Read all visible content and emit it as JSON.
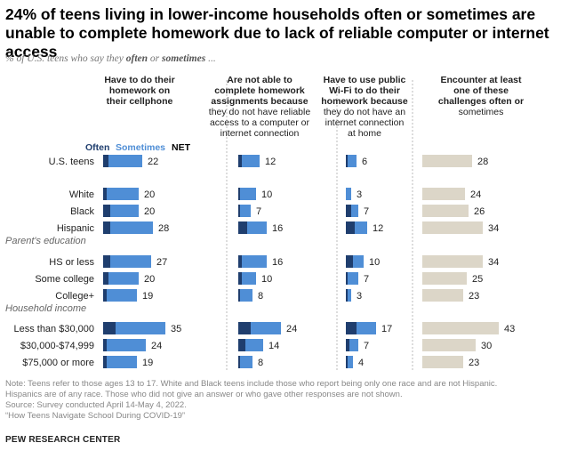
{
  "title": "24% of teens living in lower-income households often or sometimes are unable to complete homework due to lack of reliable computer or internet access",
  "subtitle": {
    "prefix": "% of U.S. teens who say they ",
    "often": "often",
    "or": " or ",
    "sometimes": "sometimes",
    "suffix": " ..."
  },
  "colors": {
    "often": "#1f3e6e",
    "sometimes": "#4f8ed6",
    "encounter": "#dcd6c8",
    "divider": "#bbbbbb",
    "text": "#222222"
  },
  "chart_data": {
    "type": "bar",
    "legend": {
      "often": "Often",
      "sometimes": "Sometimes",
      "net": "NET"
    },
    "panels": [
      {
        "header": [
          "Have to do their",
          "homework on",
          "their cellphone"
        ],
        "bold_lines": 3
      },
      {
        "header": [
          "Are not able to",
          "complete homework",
          "assignments because",
          "they do not have reliable",
          "access to a computer or",
          "internet connection"
        ],
        "bold_lines": 3
      },
      {
        "header": [
          "Have to use public",
          "Wi-Fi to do their",
          "homework because",
          "they do not have an",
          "internet connection",
          "at home"
        ],
        "bold_lines": 3
      },
      {
        "header": [
          "Encounter at least",
          "one of these",
          "challenges often or",
          "sometimes"
        ],
        "bold_lines": 3
      }
    ],
    "group_labels": [
      "Parent's education",
      "Household income"
    ],
    "rows": [
      {
        "label": "U.S. teens",
        "values": [
          [
            3,
            19,
            22
          ],
          [
            2,
            10,
            12
          ],
          [
            1,
            5,
            6
          ],
          [
            28
          ]
        ]
      },
      {
        "label": "White",
        "values": [
          [
            2,
            18,
            20
          ],
          [
            1,
            9,
            10
          ],
          [
            0,
            3,
            3
          ],
          [
            24
          ]
        ]
      },
      {
        "label": "Black",
        "values": [
          [
            4,
            16,
            20
          ],
          [
            1,
            6,
            7
          ],
          [
            3,
            4,
            7
          ],
          [
            26
          ]
        ]
      },
      {
        "label": "Hispanic",
        "values": [
          [
            4,
            24,
            28
          ],
          [
            5,
            11,
            16
          ],
          [
            5,
            7,
            12
          ],
          [
            34
          ]
        ]
      },
      {
        "label": "HS or less",
        "values": [
          [
            4,
            23,
            27
          ],
          [
            2,
            14,
            16
          ],
          [
            4,
            6,
            10
          ],
          [
            34
          ]
        ]
      },
      {
        "label": "Some college",
        "values": [
          [
            3,
            17,
            20
          ],
          [
            2,
            8,
            10
          ],
          [
            1,
            6,
            7
          ],
          [
            25
          ]
        ]
      },
      {
        "label": "College+",
        "values": [
          [
            2,
            17,
            19
          ],
          [
            1,
            7,
            8
          ],
          [
            1,
            2,
            3
          ],
          [
            23
          ]
        ]
      },
      {
        "label": "Less than $30,000",
        "values": [
          [
            7,
            28,
            35
          ],
          [
            7,
            17,
            24
          ],
          [
            6,
            11,
            17
          ],
          [
            43
          ]
        ]
      },
      {
        "label": "$30,000-$74,999",
        "values": [
          [
            2,
            22,
            24
          ],
          [
            4,
            10,
            14
          ],
          [
            2,
            5,
            7
          ],
          [
            30
          ]
        ]
      },
      {
        "label": "$75,000 or more",
        "values": [
          [
            2,
            17,
            19
          ],
          [
            1,
            7,
            8
          ],
          [
            1,
            3,
            4
          ],
          [
            23
          ]
        ]
      }
    ]
  },
  "notes": [
    "Note: Teens refer to those ages 13 to 17. White and Black teens include those who report being only one race and are not Hispanic.",
    "Hispanics are of any race. Those who did not give an answer or who gave other responses are not shown.",
    "Source: Survey conducted April 14-May 4, 2022.",
    "“How Teens Navigate School During COVID-19”"
  ],
  "source_org": "PEW RESEARCH CENTER"
}
